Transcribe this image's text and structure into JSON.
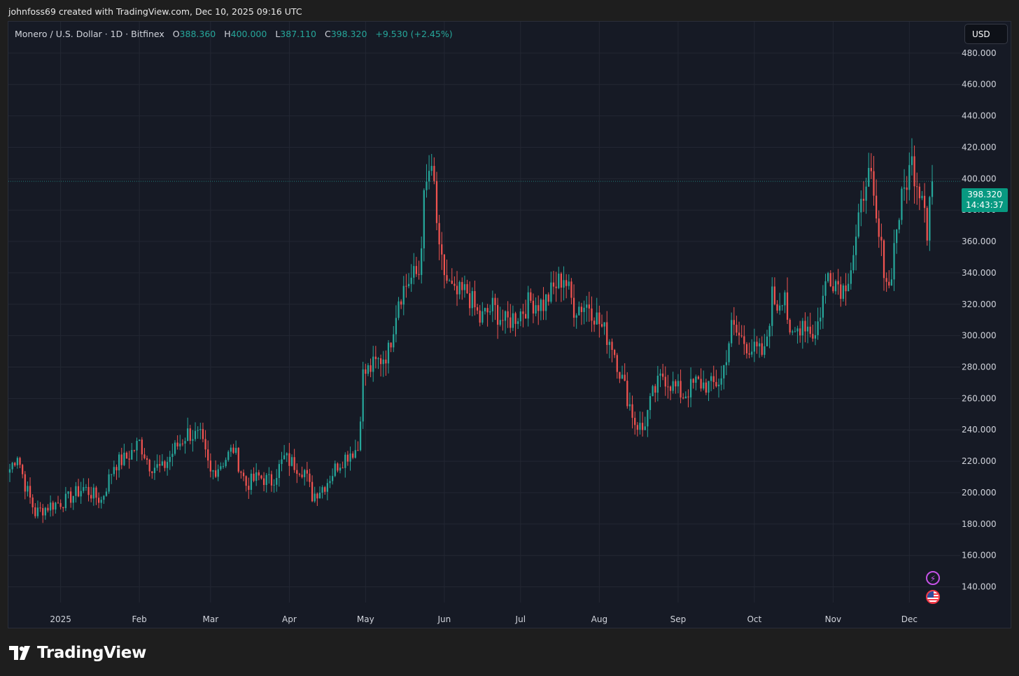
{
  "header": {
    "credit": "johnfoss69 created with TradingView.com, Dec 10, 2025 09:16 UTC"
  },
  "legend": {
    "symbol": "Monero / U.S. Dollar · 1D · Bitfinex",
    "open_label": "O",
    "open": "388.360",
    "high_label": "H",
    "high": "400.000",
    "low_label": "L",
    "low": "387.110",
    "close_label": "C",
    "close": "398.320",
    "change": "+9.530 (+2.45%)"
  },
  "currency_button": {
    "label": "USD"
  },
  "price_tag": {
    "price": "398.320",
    "countdown": "14:43:37"
  },
  "footer": {
    "brand": "TradingView"
  },
  "colors": {
    "up": "#26a69a",
    "down": "#ef5350",
    "background": "#161a25",
    "grid": "#232733",
    "price_tag": "#089981",
    "price_line": "#26a69a"
  },
  "icons": [
    "lightning-icon",
    "us-flag-icon",
    "tradingview-logo-icon"
  ],
  "chart_data": {
    "type": "candlestick",
    "title": "Monero / U.S. Dollar · 1D · Bitfinex",
    "ylim": [
      130,
      500
    ],
    "y_axis_side": "right",
    "yticks": [
      "140.000",
      "160.000",
      "180.000",
      "200.000",
      "220.000",
      "240.000",
      "260.000",
      "280.000",
      "300.000",
      "320.000",
      "340.000",
      "360.000",
      "380.000",
      "400.000",
      "420.000",
      "440.000",
      "460.000",
      "480.000"
    ],
    "xticks": [
      "2025",
      "Feb",
      "Mar",
      "Apr",
      "May",
      "Jun",
      "Jul",
      "Aug",
      "Sep",
      "Oct",
      "Nov",
      "Dec"
    ],
    "grid": true,
    "last_price": 398.32,
    "anchors": [
      [
        "2024-12-12",
        215
      ],
      [
        "2024-12-15",
        225
      ],
      [
        "2024-12-18",
        205
      ],
      [
        "2024-12-22",
        187
      ],
      [
        "2024-12-28",
        192
      ],
      [
        "2025-01-03",
        195
      ],
      [
        "2025-01-10",
        203
      ],
      [
        "2025-01-17",
        195
      ],
      [
        "2025-01-22",
        218
      ],
      [
        "2025-01-27",
        222
      ],
      [
        "2025-02-01",
        232
      ],
      [
        "2025-02-05",
        218
      ],
      [
        "2025-02-10",
        215
      ],
      [
        "2025-02-15",
        228
      ],
      [
        "2025-02-20",
        238
      ],
      [
        "2025-02-25",
        235
      ],
      [
        "2025-03-01",
        212
      ],
      [
        "2025-03-06",
        220
      ],
      [
        "2025-03-10",
        228
      ],
      [
        "2025-03-15",
        205
      ],
      [
        "2025-03-20",
        210
      ],
      [
        "2025-03-25",
        207
      ],
      [
        "2025-03-30",
        222
      ],
      [
        "2025-04-03",
        218
      ],
      [
        "2025-04-07",
        214
      ],
      [
        "2025-04-10",
        198
      ],
      [
        "2025-04-15",
        205
      ],
      [
        "2025-04-20",
        218
      ],
      [
        "2025-04-25",
        226
      ],
      [
        "2025-04-28",
        228
      ],
      [
        "2025-04-30",
        275
      ],
      [
        "2025-05-05",
        282
      ],
      [
        "2025-05-10",
        290
      ],
      [
        "2025-05-14",
        325
      ],
      [
        "2025-05-18",
        335
      ],
      [
        "2025-05-22",
        340
      ],
      [
        "2025-05-24",
        385
      ],
      [
        "2025-05-26",
        405
      ],
      [
        "2025-05-28",
        395
      ],
      [
        "2025-05-30",
        350
      ],
      [
        "2025-06-02",
        335
      ],
      [
        "2025-06-05",
        325
      ],
      [
        "2025-06-10",
        328
      ],
      [
        "2025-06-15",
        310
      ],
      [
        "2025-06-20",
        318
      ],
      [
        "2025-06-25",
        308
      ],
      [
        "2025-07-01",
        315
      ],
      [
        "2025-07-05",
        322
      ],
      [
        "2025-07-10",
        320
      ],
      [
        "2025-07-15",
        332
      ],
      [
        "2025-07-18",
        338
      ],
      [
        "2025-07-22",
        318
      ],
      [
        "2025-07-28",
        320
      ],
      [
        "2025-08-02",
        305
      ],
      [
        "2025-08-06",
        295
      ],
      [
        "2025-08-10",
        272
      ],
      [
        "2025-08-15",
        245
      ],
      [
        "2025-08-18",
        240
      ],
      [
        "2025-08-22",
        262
      ],
      [
        "2025-08-26",
        275
      ],
      [
        "2025-08-30",
        268
      ],
      [
        "2025-09-03",
        262
      ],
      [
        "2025-09-08",
        270
      ],
      [
        "2025-09-14",
        268
      ],
      [
        "2025-09-18",
        272
      ],
      [
        "2025-09-22",
        305
      ],
      [
        "2025-09-26",
        298
      ],
      [
        "2025-10-01",
        290
      ],
      [
        "2025-10-05",
        288
      ],
      [
        "2025-10-08",
        325
      ],
      [
        "2025-10-10",
        320
      ],
      [
        "2025-10-13",
        330
      ],
      [
        "2025-10-15",
        295
      ],
      [
        "2025-10-20",
        310
      ],
      [
        "2025-10-25",
        300
      ],
      [
        "2025-10-30",
        340
      ],
      [
        "2025-11-02",
        335
      ],
      [
        "2025-11-05",
        330
      ],
      [
        "2025-11-08",
        345
      ],
      [
        "2025-11-10",
        360
      ],
      [
        "2025-11-12",
        380
      ],
      [
        "2025-11-14",
        405
      ],
      [
        "2025-11-16",
        395
      ],
      [
        "2025-11-18",
        370
      ],
      [
        "2025-11-21",
        345
      ],
      [
        "2025-11-23",
        330
      ],
      [
        "2025-11-26",
        370
      ],
      [
        "2025-11-30",
        400
      ],
      [
        "2025-12-02",
        410
      ],
      [
        "2025-12-05",
        395
      ],
      [
        "2025-12-07",
        390
      ],
      [
        "2025-12-08",
        365
      ],
      [
        "2025-12-09",
        388.36
      ],
      [
        "2025-12-10",
        398.32
      ]
    ]
  }
}
